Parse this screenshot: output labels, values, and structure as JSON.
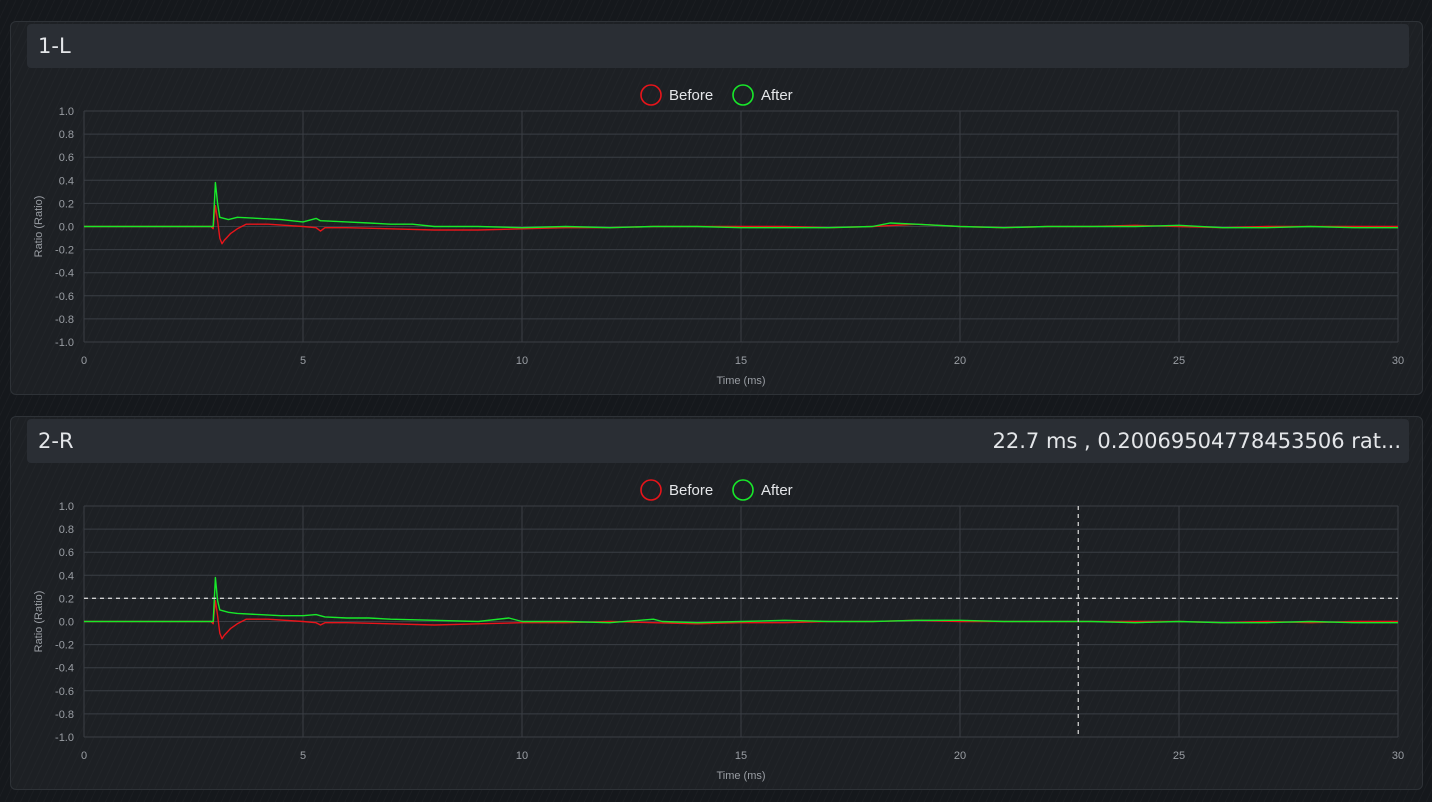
{
  "panels": [
    {
      "title": "1-L",
      "readout": ""
    },
    {
      "title": "2-R",
      "readout": "22.7 ms , 0.20069504778453506 rat..."
    }
  ],
  "legend": {
    "before": "Before",
    "after": "After"
  },
  "colors": {
    "before": "#e8141a",
    "after": "#18e82a",
    "grid": "#3a3e44",
    "crosshair": "#d0d0d0"
  },
  "chart_data": [
    {
      "type": "line",
      "xlabel": "Time (ms)",
      "ylabel": "Ratio (Ratio)",
      "xlim": [
        0,
        30
      ],
      "ylim": [
        -1.0,
        1.0
      ],
      "xticks": [
        "0",
        "5",
        "10",
        "15",
        "20",
        "25",
        "30"
      ],
      "yticks": [
        "1.0",
        "0.8",
        "0.6",
        "0.4",
        "0.2",
        "0.0",
        "-0.2",
        "-0.4",
        "-0.6",
        "-0.8",
        "-1.0"
      ],
      "grid": true,
      "legend_position": "top-center",
      "series": [
        {
          "name": "Before",
          "color": "#e8141a",
          "points": [
            [
              0,
              0
            ],
            [
              2.9,
              0
            ],
            [
              2.95,
              -0.02
            ],
            [
              3.0,
              0.18
            ],
            [
              3.05,
              0.05
            ],
            [
              3.1,
              -0.1
            ],
            [
              3.15,
              -0.15
            ],
            [
              3.2,
              -0.12
            ],
            [
              3.35,
              -0.06
            ],
            [
              3.5,
              -0.02
            ],
            [
              3.7,
              0.02
            ],
            [
              4.2,
              0.02
            ],
            [
              5.0,
              0.0
            ],
            [
              5.3,
              -0.01
            ],
            [
              5.4,
              -0.04
            ],
            [
              5.5,
              -0.01
            ],
            [
              6,
              -0.01
            ],
            [
              7,
              -0.02
            ],
            [
              8,
              -0.03
            ],
            [
              9,
              -0.03
            ],
            [
              10,
              -0.02
            ],
            [
              11,
              -0.01
            ],
            [
              12,
              -0.01
            ],
            [
              13,
              0.0
            ],
            [
              14,
              0.0
            ],
            [
              15,
              0.0
            ],
            [
              16,
              0.0
            ],
            [
              17,
              -0.01
            ],
            [
              18,
              0.0
            ],
            [
              19,
              0.02
            ],
            [
              20,
              0.0
            ],
            [
              21,
              -0.01
            ],
            [
              22,
              0.0
            ],
            [
              23,
              0.0
            ],
            [
              24,
              0.01
            ],
            [
              25,
              0.0
            ],
            [
              26,
              -0.01
            ],
            [
              27,
              0.0
            ],
            [
              28,
              0.0
            ],
            [
              29,
              0.0
            ],
            [
              30,
              0.0
            ]
          ]
        },
        {
          "name": "After",
          "color": "#18e82a",
          "points": [
            [
              0,
              0
            ],
            [
              2.95,
              0
            ],
            [
              3.0,
              0.38
            ],
            [
              3.05,
              0.2
            ],
            [
              3.1,
              0.08
            ],
            [
              3.3,
              0.06
            ],
            [
              3.5,
              0.08
            ],
            [
              4,
              0.07
            ],
            [
              4.5,
              0.06
            ],
            [
              5,
              0.04
            ],
            [
              5.3,
              0.07
            ],
            [
              5.4,
              0.05
            ],
            [
              6,
              0.04
            ],
            [
              6.5,
              0.03
            ],
            [
              7,
              0.02
            ],
            [
              7.5,
              0.02
            ],
            [
              8,
              0.0
            ],
            [
              9,
              0.0
            ],
            [
              10,
              -0.01
            ],
            [
              11,
              0.0
            ],
            [
              12,
              -0.01
            ],
            [
              13,
              0.0
            ],
            [
              14,
              0.0
            ],
            [
              15,
              -0.01
            ],
            [
              16,
              -0.01
            ],
            [
              17,
              -0.01
            ],
            [
              18,
              0.0
            ],
            [
              18.4,
              0.03
            ],
            [
              19,
              0.02
            ],
            [
              20,
              0.0
            ],
            [
              21,
              -0.01
            ],
            [
              22,
              0.0
            ],
            [
              23,
              0.0
            ],
            [
              24,
              0.0
            ],
            [
              25,
              0.01
            ],
            [
              26,
              -0.01
            ],
            [
              27,
              -0.01
            ],
            [
              28,
              0.0
            ],
            [
              29,
              -0.01
            ],
            [
              30,
              -0.01
            ]
          ]
        }
      ]
    },
    {
      "type": "line",
      "xlabel": "Time (ms)",
      "ylabel": "Ratio (Ratio)",
      "xlim": [
        0,
        30
      ],
      "ylim": [
        -1.0,
        1.0
      ],
      "xticks": [
        "0",
        "5",
        "10",
        "15",
        "20",
        "25",
        "30"
      ],
      "yticks": [
        "1.0",
        "0.8",
        "0.6",
        "0.4",
        "0.2",
        "0.0",
        "-0.2",
        "-0.4",
        "-0.6",
        "-0.8",
        "-1.0"
      ],
      "grid": true,
      "legend_position": "top-center",
      "crosshair": {
        "x": 22.7,
        "y": 0.20069504778453506
      },
      "series": [
        {
          "name": "Before",
          "color": "#e8141a",
          "points": [
            [
              0,
              0
            ],
            [
              2.9,
              0
            ],
            [
              2.95,
              -0.02
            ],
            [
              3.0,
              0.18
            ],
            [
              3.05,
              0.05
            ],
            [
              3.1,
              -0.1
            ],
            [
              3.15,
              -0.15
            ],
            [
              3.2,
              -0.12
            ],
            [
              3.35,
              -0.06
            ],
            [
              3.5,
              -0.02
            ],
            [
              3.7,
              0.02
            ],
            [
              4.2,
              0.02
            ],
            [
              5.0,
              0.0
            ],
            [
              5.3,
              -0.01
            ],
            [
              5.4,
              -0.03
            ],
            [
              5.5,
              -0.01
            ],
            [
              6,
              -0.01
            ],
            [
              7,
              -0.02
            ],
            [
              8,
              -0.03
            ],
            [
              9,
              -0.02
            ],
            [
              10,
              -0.01
            ],
            [
              11,
              -0.01
            ],
            [
              12,
              0.0
            ],
            [
              13,
              -0.01
            ],
            [
              14,
              -0.02
            ],
            [
              15,
              -0.01
            ],
            [
              16,
              -0.01
            ],
            [
              17,
              0.0
            ],
            [
              18,
              0.0
            ],
            [
              19,
              0.01
            ],
            [
              20,
              0.0
            ],
            [
              21,
              0.0
            ],
            [
              22,
              0.0
            ],
            [
              23,
              0.0
            ],
            [
              24,
              0.0
            ],
            [
              25,
              0.0
            ],
            [
              26,
              -0.01
            ],
            [
              27,
              0.0
            ],
            [
              28,
              -0.01
            ],
            [
              29,
              0.0
            ],
            [
              30,
              0.0
            ]
          ]
        },
        {
          "name": "After",
          "color": "#18e82a",
          "points": [
            [
              0,
              0
            ],
            [
              2.95,
              0
            ],
            [
              3.0,
              0.38
            ],
            [
              3.05,
              0.18
            ],
            [
              3.1,
              0.1
            ],
            [
              3.3,
              0.08
            ],
            [
              3.5,
              0.07
            ],
            [
              4,
              0.06
            ],
            [
              4.5,
              0.05
            ],
            [
              5,
              0.05
            ],
            [
              5.3,
              0.06
            ],
            [
              5.5,
              0.04
            ],
            [
              6,
              0.03
            ],
            [
              6.5,
              0.03
            ],
            [
              7,
              0.02
            ],
            [
              8,
              0.01
            ],
            [
              9,
              0.0
            ],
            [
              9.7,
              0.03
            ],
            [
              10,
              0.0
            ],
            [
              11,
              0.0
            ],
            [
              12,
              -0.01
            ],
            [
              13,
              0.02
            ],
            [
              13.2,
              0.0
            ],
            [
              14,
              -0.01
            ],
            [
              15,
              0.0
            ],
            [
              16,
              0.01
            ],
            [
              17,
              0.0
            ],
            [
              18,
              0.0
            ],
            [
              19,
              0.01
            ],
            [
              20,
              0.01
            ],
            [
              21,
              0.0
            ],
            [
              22,
              0.0
            ],
            [
              23,
              0.0
            ],
            [
              24,
              -0.01
            ],
            [
              25,
              0.0
            ],
            [
              26,
              -0.01
            ],
            [
              27,
              -0.01
            ],
            [
              28,
              0.0
            ],
            [
              29,
              -0.01
            ],
            [
              30,
              -0.01
            ]
          ]
        }
      ]
    }
  ]
}
